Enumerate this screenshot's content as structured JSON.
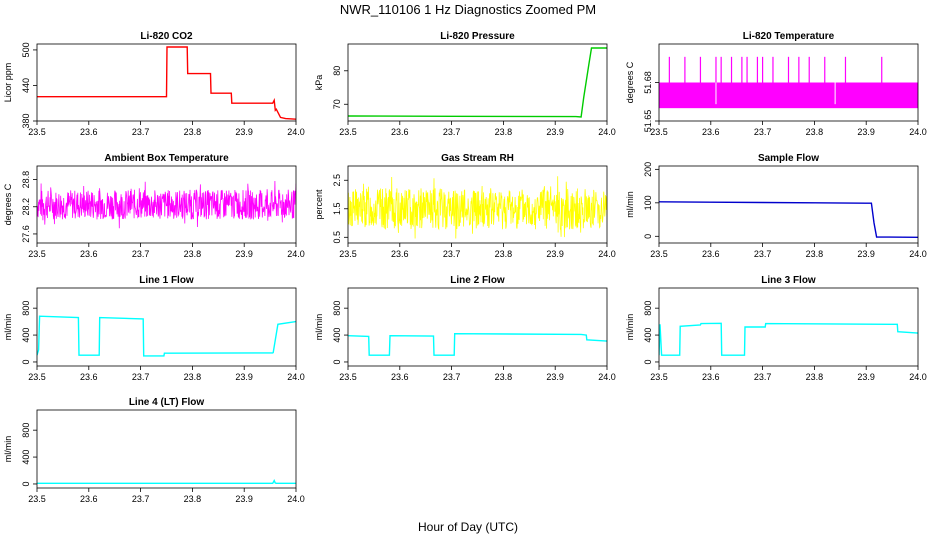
{
  "title": "NWR_110106  1 Hz Diagnostics Zoomed PM",
  "xlabel": "Hour of Day (UTC)",
  "chart_data": [
    {
      "type": "line",
      "title": "Li-820 CO2",
      "ylabel": "Licor ppm",
      "color": "#ff0000",
      "xlim": [
        23.5,
        24.0
      ],
      "ylim": [
        380,
        510
      ],
      "xticks": [
        23.5,
        23.6,
        23.7,
        23.8,
        23.9,
        24.0
      ],
      "yticks": [
        380,
        440,
        500
      ],
      "series": [
        {
          "x": [
            23.5,
            23.7,
            23.75,
            23.751,
            23.79,
            23.791,
            23.835,
            23.836,
            23.875,
            23.876,
            23.955,
            23.958,
            23.96,
            23.962,
            23.97,
            23.98,
            24.0
          ],
          "y": [
            421,
            421,
            421,
            505,
            505,
            460,
            460,
            427,
            427,
            410,
            410,
            415,
            398,
            400,
            386,
            384,
            383
          ]
        }
      ]
    },
    {
      "type": "line",
      "title": "Li-820 Pressure",
      "ylabel": "kPa",
      "color": "#00cc00",
      "xlim": [
        23.5,
        24.0
      ],
      "ylim": [
        65,
        88
      ],
      "xticks": [
        23.5,
        23.6,
        23.7,
        23.8,
        23.9,
        24.0
      ],
      "yticks": [
        70,
        80
      ],
      "series": [
        {
          "x": [
            23.5,
            23.7,
            23.94,
            23.95,
            23.955,
            23.965,
            23.97,
            24.0
          ],
          "y": [
            66.5,
            66.4,
            66.3,
            66.2,
            72,
            82,
            86.8,
            86.8
          ]
        }
      ]
    },
    {
      "type": "line",
      "title": "Li-820 Temperature",
      "ylabel": "degrees C",
      "color": "#ff00ff",
      "xlim": [
        23.5,
        24.0
      ],
      "ylim": [
        51.65,
        51.71
      ],
      "xticks": [
        23.5,
        23.6,
        23.7,
        23.8,
        23.9,
        24.0
      ],
      "yticks": [
        51.65,
        51.68
      ],
      "band": [
        51.66,
        51.68
      ],
      "spikes_x": [
        23.52,
        23.55,
        23.58,
        23.61,
        23.62,
        23.64,
        23.66,
        23.67,
        23.69,
        23.7,
        23.72,
        23.75,
        23.77,
        23.79,
        23.82,
        23.86,
        23.93
      ],
      "spike_top": 51.7,
      "gaps_x": [
        23.61,
        23.84
      ]
    },
    {
      "type": "line",
      "title": "Ambient Box Temperature",
      "ylabel": "degrees C",
      "color": "#ff00ff",
      "xlim": [
        23.5,
        24.0
      ],
      "ylim": [
        27.4,
        29.1
      ],
      "xticks": [
        23.5,
        23.6,
        23.7,
        23.8,
        23.9,
        24.0
      ],
      "yticks": [
        27.6,
        28.2,
        28.8
      ],
      "noise": {
        "center": 28.25,
        "amp": 0.55,
        "seed": 7
      }
    },
    {
      "type": "line",
      "title": "Gas Stream RH",
      "ylabel": "percent",
      "color": "#ffff00",
      "xlim": [
        23.5,
        24.0
      ],
      "ylim": [
        0.3,
        3.0
      ],
      "xticks": [
        23.5,
        23.6,
        23.7,
        23.8,
        23.9,
        24.0
      ],
      "yticks": [
        0.5,
        1.5,
        2.5
      ],
      "noise": {
        "center": 1.5,
        "amp": 1.2,
        "seed": 13
      }
    },
    {
      "type": "line",
      "title": "Sample Flow",
      "ylabel": "ml/min",
      "color": "#0000cc",
      "xlim": [
        23.5,
        24.0
      ],
      "ylim": [
        -20,
        210
      ],
      "xticks": [
        23.5,
        23.6,
        23.7,
        23.8,
        23.9,
        24.0
      ],
      "yticks": [
        0,
        100,
        200
      ],
      "series": [
        {
          "x": [
            23.5,
            23.6,
            23.7,
            23.8,
            23.9,
            23.91,
            23.915,
            23.92,
            24.0
          ],
          "y": [
            103,
            102,
            101,
            100,
            99,
            99,
            40,
            -2,
            -3
          ]
        }
      ]
    },
    {
      "type": "line",
      "title": "Line 1 Flow",
      "ylabel": "ml/min",
      "color": "#00ffff",
      "xlim": [
        23.5,
        24.0
      ],
      "ylim": [
        -60,
        1100
      ],
      "xticks": [
        23.5,
        23.6,
        23.7,
        23.8,
        23.9,
        24.0
      ],
      "yticks": [
        0,
        400,
        800
      ],
      "series": [
        {
          "x": [
            23.5,
            23.503,
            23.505,
            23.58,
            23.581,
            23.62,
            23.621,
            23.705,
            23.706,
            23.745,
            23.746,
            23.955,
            23.956,
            23.965,
            24.0
          ],
          "y": [
            100,
            180,
            680,
            660,
            100,
            100,
            660,
            640,
            90,
            90,
            130,
            135,
            140,
            560,
            600
          ]
        }
      ]
    },
    {
      "type": "line",
      "title": "Line 2 Flow",
      "ylabel": "ml/min",
      "color": "#00ffff",
      "xlim": [
        23.5,
        24.0
      ],
      "ylim": [
        -60,
        1100
      ],
      "xticks": [
        23.5,
        23.6,
        23.7,
        23.8,
        23.9,
        24.0
      ],
      "yticks": [
        0,
        400,
        800
      ],
      "series": [
        {
          "x": [
            23.5,
            23.54,
            23.541,
            23.58,
            23.581,
            23.665,
            23.666,
            23.705,
            23.706,
            23.95,
            23.96,
            23.961,
            24.0
          ],
          "y": [
            390,
            380,
            100,
            100,
            390,
            385,
            100,
            100,
            420,
            410,
            400,
            330,
            310
          ]
        }
      ]
    },
    {
      "type": "line",
      "title": "Line 3 Flow",
      "ylabel": "ml/min",
      "color": "#00ffff",
      "xlim": [
        23.5,
        24.0
      ],
      "ylim": [
        -60,
        1100
      ],
      "xticks": [
        23.5,
        23.6,
        23.7,
        23.8,
        23.9,
        24.0
      ],
      "yticks": [
        0,
        400,
        800
      ],
      "series": [
        {
          "x": [
            23.5,
            23.502,
            23.505,
            23.54,
            23.541,
            23.58,
            23.581,
            23.62,
            23.621,
            23.665,
            23.666,
            23.705,
            23.706,
            23.95,
            23.96,
            23.961,
            24.0
          ],
          "y": [
            100,
            560,
            100,
            100,
            530,
            550,
            570,
            575,
            100,
            100,
            520,
            520,
            570,
            560,
            560,
            450,
            430
          ]
        }
      ]
    },
    {
      "type": "line",
      "title": "Line 4 (LT) Flow",
      "ylabel": "ml/min",
      "color": "#00ffff",
      "xlim": [
        23.5,
        24.0
      ],
      "ylim": [
        -60,
        1100
      ],
      "xticks": [
        23.5,
        23.6,
        23.7,
        23.8,
        23.9,
        24.0
      ],
      "yticks": [
        0,
        400,
        800
      ],
      "series": [
        {
          "x": [
            23.5,
            23.955,
            23.958,
            23.96,
            23.962,
            24.0
          ],
          "y": [
            10,
            10,
            50,
            15,
            10,
            10
          ]
        }
      ]
    }
  ]
}
